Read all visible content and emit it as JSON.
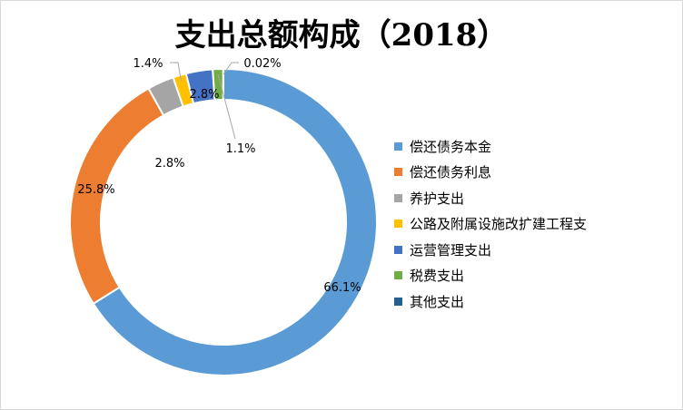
{
  "chart_data": {
    "type": "pie",
    "title": "支出总额构成（2018）",
    "series": [
      {
        "name": "偿还债务本金",
        "value": 66.1,
        "label": "66.1%",
        "color": "#5b9bd5"
      },
      {
        "name": "偿还债务利息",
        "value": 25.8,
        "label": "25.8%",
        "color": "#ed7d31"
      },
      {
        "name": "养护支出",
        "value": 2.8,
        "label": "2.8%",
        "color": "#a5a5a5"
      },
      {
        "name": "公路及附属设施改扩建工程支",
        "value": 1.4,
        "label": "1.4%",
        "color": "#ffc000"
      },
      {
        "name": "运营管理支出",
        "value": 2.8,
        "label": "2.8%",
        "color": "#4472c4"
      },
      {
        "name": "税费支出",
        "value": 1.1,
        "label": "1.1%",
        "color": "#70ad47"
      },
      {
        "name": "其他支出",
        "value": 0.02,
        "label": "0.02%",
        "color": "#255e91"
      }
    ],
    "legend_position": "right"
  }
}
